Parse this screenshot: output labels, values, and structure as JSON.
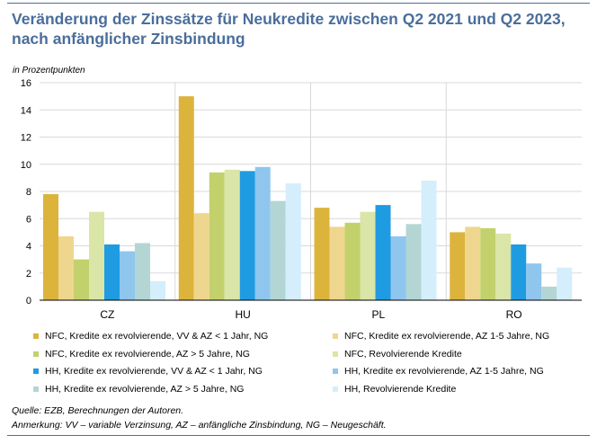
{
  "title_line1": "Veränderung der Zinssätze für Neukredite zwischen Q2 2021 und Q2 2023,",
  "title_line2": "nach anfänglicher Zinsbindung",
  "source_note": "Quelle: EZB, Berechnungen der Autoren.",
  "annotation_note": "Anmerkung: VV – variable Verzinsung,  AZ – anfängliche Zinsbindung,  NG – Neugeschäft.",
  "chart_data": {
    "type": "bar",
    "ylabel": "in Prozentpunkten",
    "ylim": [
      0,
      16
    ],
    "yticks": [
      0,
      2,
      4,
      6,
      8,
      10,
      12,
      14,
      16
    ],
    "grid": true,
    "legend_position": "bottom",
    "categories": [
      "CZ",
      "HU",
      "PL",
      "RO"
    ],
    "series": [
      {
        "name": "NFC, Kredite ex revolvierende, VV & AZ < 1 Jahr, NG",
        "color": "#dcb43c",
        "values": [
          7.8,
          15.0,
          6.8,
          5.0
        ]
      },
      {
        "name": "NFC, Kredite ex revolvierende, AZ 1-5 Jahre, NG",
        "color": "#efd68e",
        "values": [
          4.7,
          6.4,
          5.4,
          5.4
        ]
      },
      {
        "name": "NFC, Kredite ex revolvierende, AZ > 5 Jahre, NG",
        "color": "#c3d16c",
        "values": [
          3.0,
          9.4,
          5.7,
          5.3
        ]
      },
      {
        "name": "NFC, Revolvierende Kredite",
        "color": "#dae5a8",
        "values": [
          6.5,
          9.6,
          6.5,
          4.9
        ]
      },
      {
        "name": "HH, Kredite ex revolvierende, VV & AZ < 1 Jahr, NG",
        "color": "#1f9be2",
        "values": [
          4.1,
          9.5,
          7.0,
          4.1
        ]
      },
      {
        "name": "HH, Kredite ex revolvierende, AZ 1-5 Jahre, NG",
        "color": "#8fc6ee",
        "values": [
          3.6,
          9.8,
          4.7,
          2.7
        ]
      },
      {
        "name": "HH, Kredite ex revolvierende, AZ > 5 Jahre, NG",
        "color": "#b3d6d4",
        "values": [
          4.2,
          7.3,
          5.6,
          1.0
        ]
      },
      {
        "name": "HH, Revolvierende Kredite",
        "color": "#d4eefb",
        "values": [
          1.4,
          8.6,
          8.8,
          2.4
        ]
      }
    ]
  }
}
